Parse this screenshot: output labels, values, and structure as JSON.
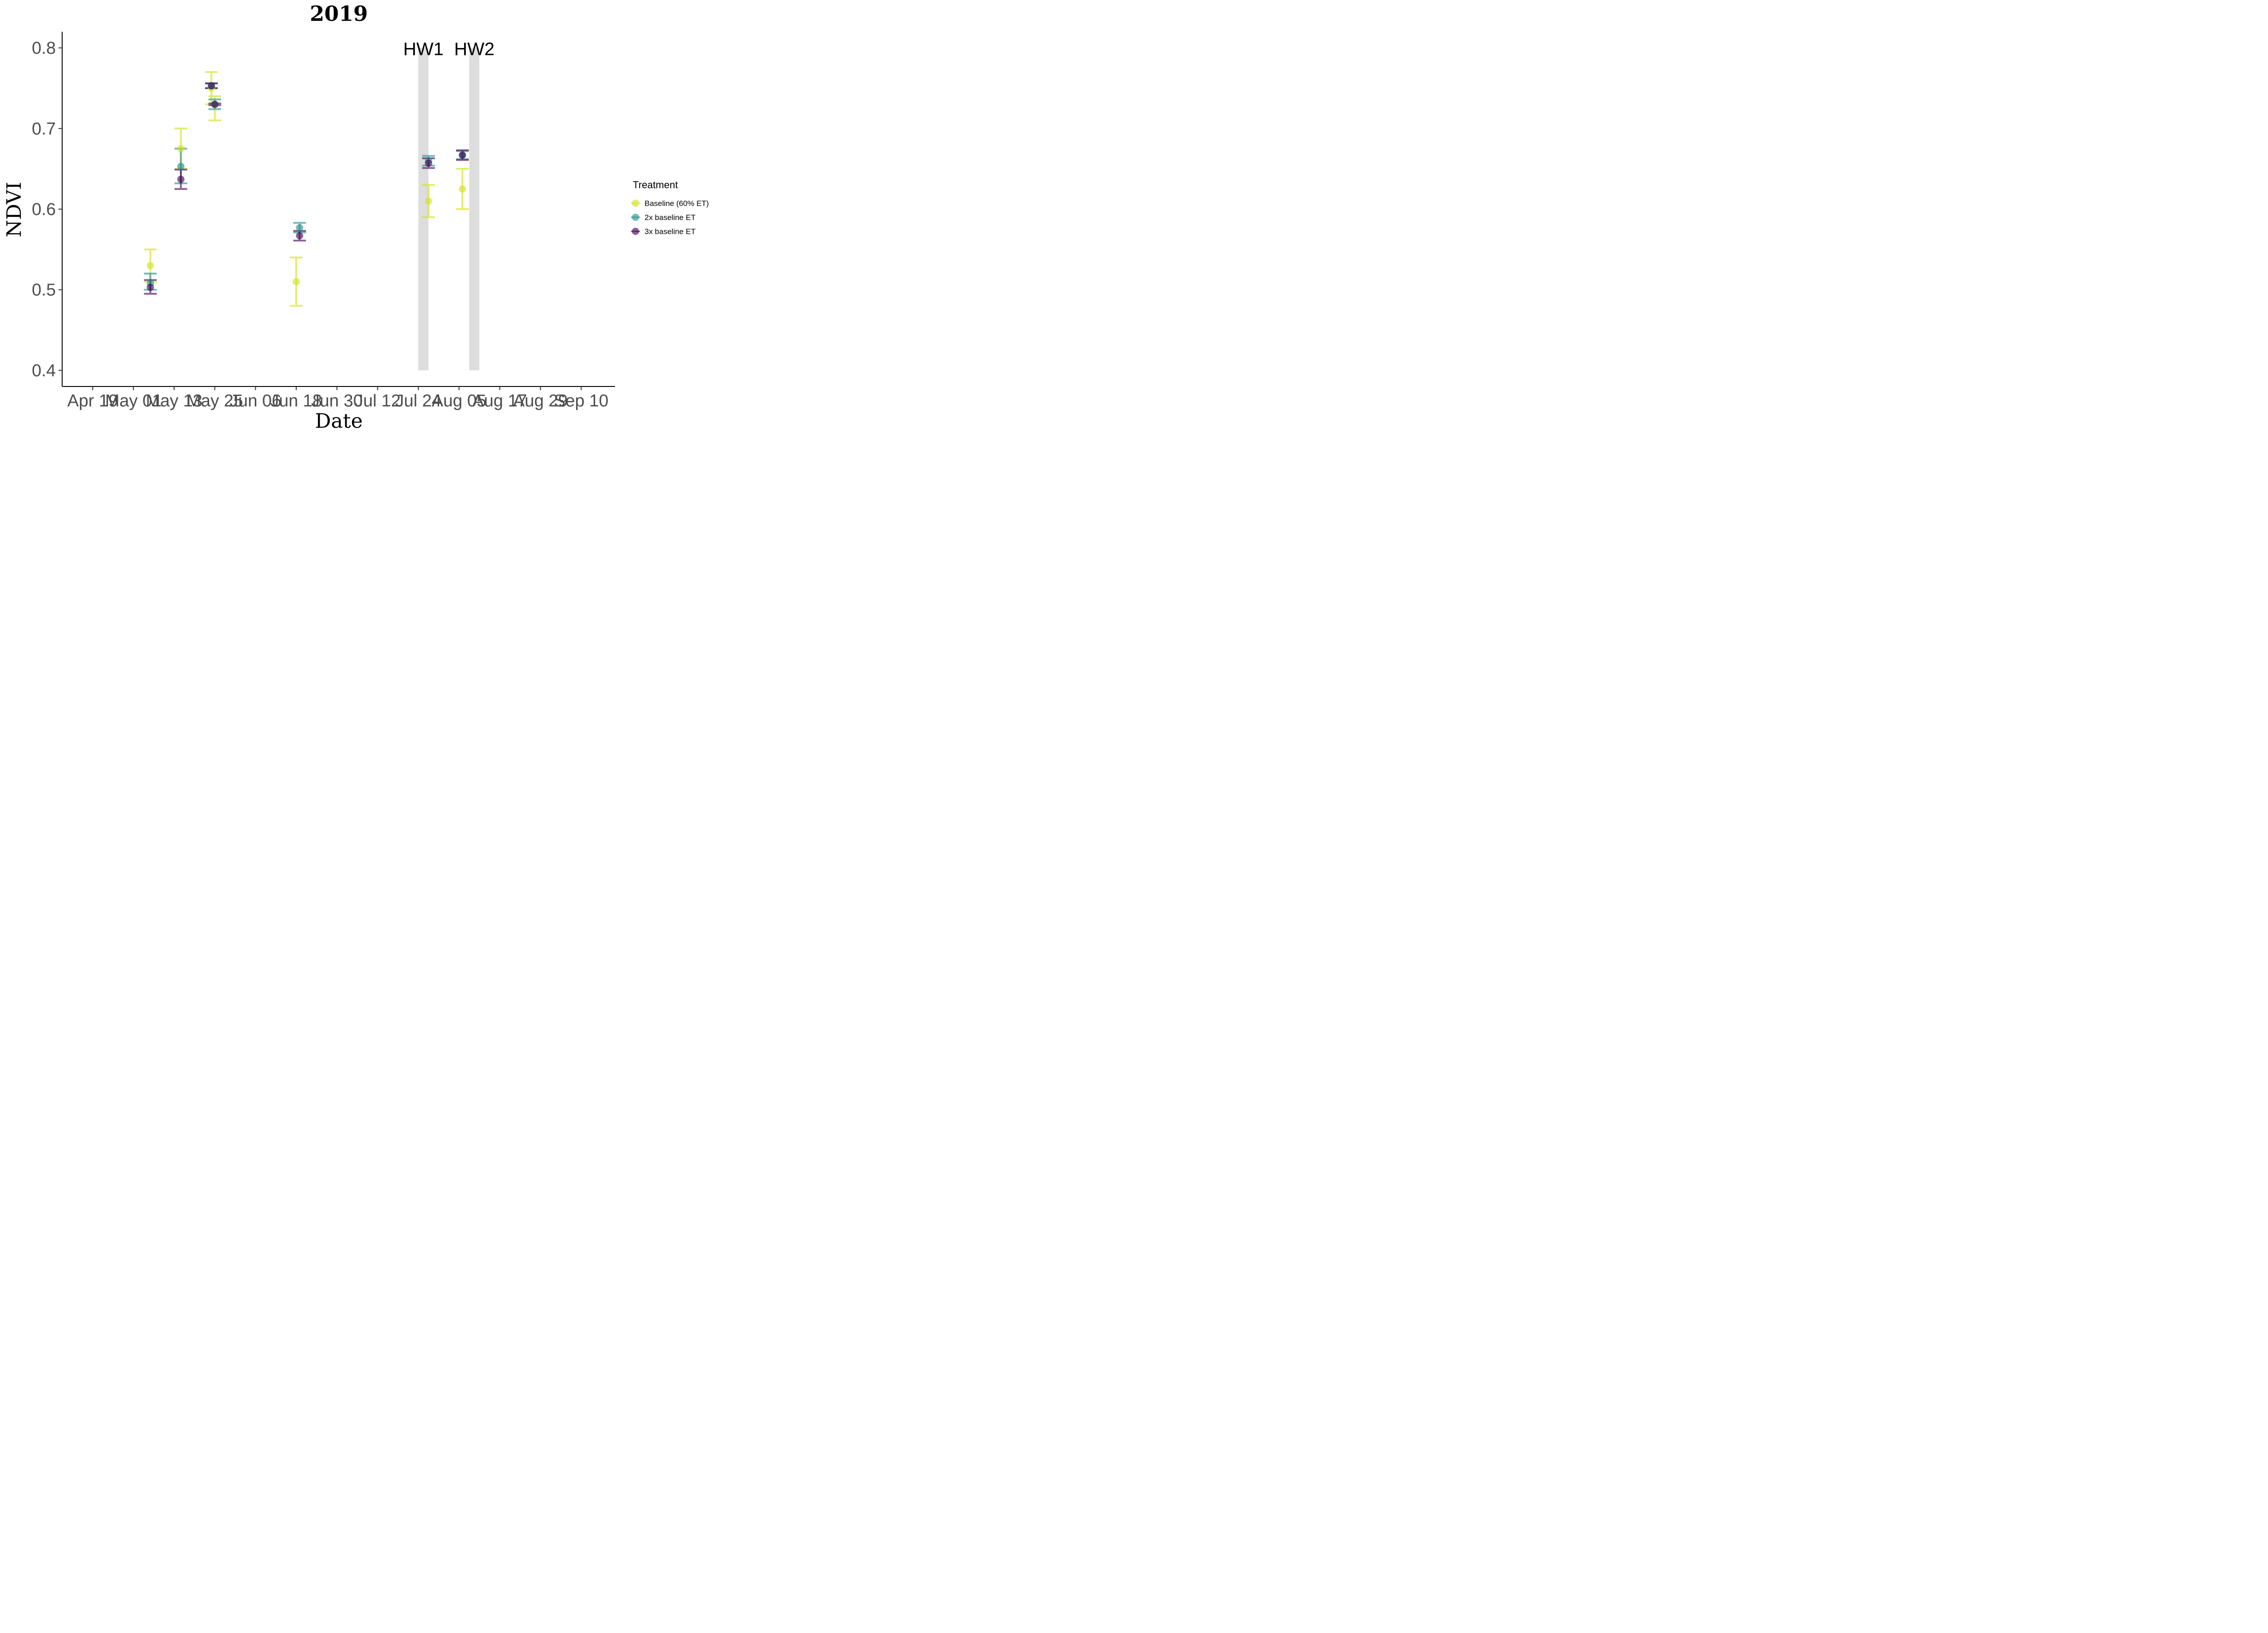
{
  "chart_data": {
    "type": "scatter",
    "title": "2019",
    "xlabel": "Date",
    "ylabel": "NDVI",
    "ylim": [
      0.4,
      0.8
    ],
    "xlim": [
      "2019-04-10",
      "2019-09-20"
    ],
    "x_ticks": [
      "Apr 19",
      "May 01",
      "May 13",
      "May 25",
      "Jun 06",
      "Jun 18",
      "Jun 30",
      "Jul 12",
      "Jul 24",
      "Aug 05",
      "Aug 17",
      "Aug 29",
      "Sep 10"
    ],
    "y_ticks": [
      0.4,
      0.5,
      0.6,
      0.7,
      0.8
    ],
    "grid": false,
    "legend": {
      "title": "Treatment",
      "placement": "right"
    },
    "heatwaves": [
      {
        "label": "HW1",
        "start": "2019-07-24",
        "end": "2019-07-27"
      },
      {
        "label": "HW2",
        "start": "2019-08-08",
        "end": "2019-08-11"
      }
    ],
    "series": [
      {
        "name": "Baseline (60% ET)",
        "color": "#d4e21a",
        "points": [
          {
            "x": "2019-05-06",
            "y": 0.53,
            "ymin": 0.51,
            "ymax": 0.55
          },
          {
            "x": "2019-05-15",
            "y": 0.675,
            "ymin": 0.65,
            "ymax": 0.7
          },
          {
            "x": "2019-05-24",
            "y": 0.75,
            "ymin": 0.73,
            "ymax": 0.77
          },
          {
            "x": "2019-05-25",
            "y": 0.73,
            "ymin": 0.71,
            "ymax": 0.74
          },
          {
            "x": "2019-06-18",
            "y": 0.51,
            "ymin": 0.48,
            "ymax": 0.54
          },
          {
            "x": "2019-07-27",
            "y": 0.61,
            "ymin": 0.59,
            "ymax": 0.63
          },
          {
            "x": "2019-08-06",
            "y": 0.625,
            "ymin": 0.6,
            "ymax": 0.65
          }
        ]
      },
      {
        "name": "2x baseline ET",
        "color": "#21908d",
        "points": [
          {
            "x": "2019-05-06",
            "y": 0.508,
            "ymin": 0.5,
            "ymax": 0.52
          },
          {
            "x": "2019-05-15",
            "y": 0.653,
            "ymin": 0.632,
            "ymax": 0.675
          },
          {
            "x": "2019-05-24",
            "y": 0.753,
            "ymin": 0.75,
            "ymax": 0.756
          },
          {
            "x": "2019-05-25",
            "y": 0.73,
            "ymin": 0.724,
            "ymax": 0.736
          },
          {
            "x": "2019-06-19",
            "y": 0.577,
            "ymin": 0.571,
            "ymax": 0.583
          },
          {
            "x": "2019-07-27",
            "y": 0.66,
            "ymin": 0.654,
            "ymax": 0.666
          },
          {
            "x": "2019-08-06",
            "y": 0.667,
            "ymin": 0.662,
            "ymax": 0.672
          }
        ]
      },
      {
        "name": "3x baseline ET",
        "color": "#440154",
        "points": [
          {
            "x": "2019-05-06",
            "y": 0.503,
            "ymin": 0.495,
            "ymax": 0.512
          },
          {
            "x": "2019-05-15",
            "y": 0.637,
            "ymin": 0.625,
            "ymax": 0.649
          },
          {
            "x": "2019-05-24",
            "y": 0.753,
            "ymin": 0.75,
            "ymax": 0.756
          },
          {
            "x": "2019-05-25",
            "y": 0.73,
            "ymin": 0.729,
            "ymax": 0.731
          },
          {
            "x": "2019-06-19",
            "y": 0.567,
            "ymin": 0.561,
            "ymax": 0.573
          },
          {
            "x": "2019-07-27",
            "y": 0.657,
            "ymin": 0.651,
            "ymax": 0.663
          },
          {
            "x": "2019-08-06",
            "y": 0.667,
            "ymin": 0.661,
            "ymax": 0.673
          }
        ]
      }
    ]
  }
}
